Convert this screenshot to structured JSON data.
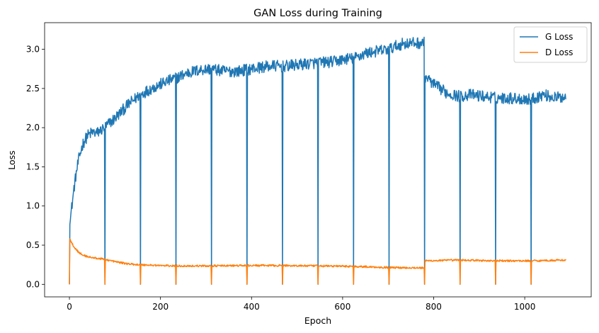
{
  "chart_data": {
    "type": "line",
    "title": "GAN Loss during Training",
    "xlabel": "Epoch",
    "ylabel": "Loss",
    "xlim": [
      -54.5,
      1146
    ],
    "ylim": [
      -0.16,
      3.34
    ],
    "xticks": [
      0,
      200,
      400,
      600,
      800,
      1000
    ],
    "yticks": [
      0.0,
      0.5,
      1.0,
      1.5,
      2.0,
      2.5,
      3.0
    ],
    "ytick_labels": [
      "0.0",
      "0.5",
      "1.0",
      "1.5",
      "2.0",
      "2.5",
      "3.0"
    ],
    "grid": false,
    "legend": "top-right",
    "n_points": 1092,
    "spike_epochs": [
      0,
      78,
      156,
      234,
      312,
      390,
      468,
      546,
      624,
      702,
      780,
      858,
      936,
      1014
    ],
    "series": [
      {
        "name": "G Loss",
        "color": "#1f77b4",
        "points": [
          [
            0,
            0.0
          ],
          [
            1,
            0.78
          ],
          [
            5,
            0.98
          ],
          [
            10,
            1.22
          ],
          [
            15,
            1.42
          ],
          [
            20,
            1.58
          ],
          [
            25,
            1.7
          ],
          [
            30,
            1.8
          ],
          [
            40,
            1.9
          ],
          [
            50,
            1.94
          ],
          [
            60,
            1.93
          ],
          [
            70,
            1.97
          ],
          [
            77,
            2.0
          ],
          [
            100,
            2.12
          ],
          [
            130,
            2.3
          ],
          [
            155,
            2.42
          ],
          [
            180,
            2.5
          ],
          [
            210,
            2.58
          ],
          [
            233,
            2.63
          ],
          [
            260,
            2.7
          ],
          [
            290,
            2.74
          ],
          [
            311,
            2.75
          ],
          [
            340,
            2.72
          ],
          [
            370,
            2.72
          ],
          [
            389,
            2.74
          ],
          [
            420,
            2.77
          ],
          [
            450,
            2.79
          ],
          [
            467,
            2.78
          ],
          [
            500,
            2.8
          ],
          [
            530,
            2.82
          ],
          [
            545,
            2.83
          ],
          [
            580,
            2.84
          ],
          [
            610,
            2.88
          ],
          [
            623,
            2.88
          ],
          [
            650,
            2.95
          ],
          [
            680,
            2.98
          ],
          [
            701,
            3.0
          ],
          [
            730,
            3.07
          ],
          [
            760,
            3.08
          ],
          [
            779,
            3.08
          ],
          [
            781,
            2.66
          ],
          [
            800,
            2.55
          ],
          [
            830,
            2.44
          ],
          [
            857,
            2.4
          ],
          [
            880,
            2.42
          ],
          [
            910,
            2.4
          ],
          [
            935,
            2.38
          ],
          [
            960,
            2.38
          ],
          [
            990,
            2.37
          ],
          [
            1013,
            2.36
          ],
          [
            1040,
            2.42
          ],
          [
            1070,
            2.38
          ],
          [
            1091,
            2.4
          ]
        ]
      },
      {
        "name": "D Loss",
        "color": "#ff7f0e",
        "points": [
          [
            0,
            0.0
          ],
          [
            1,
            0.58
          ],
          [
            10,
            0.48
          ],
          [
            20,
            0.41
          ],
          [
            30,
            0.37
          ],
          [
            50,
            0.34
          ],
          [
            77,
            0.32
          ],
          [
            100,
            0.29
          ],
          [
            130,
            0.26
          ],
          [
            155,
            0.25
          ],
          [
            200,
            0.24
          ],
          [
            233,
            0.235
          ],
          [
            300,
            0.235
          ],
          [
            389,
            0.24
          ],
          [
            467,
            0.24
          ],
          [
            545,
            0.235
          ],
          [
            623,
            0.23
          ],
          [
            701,
            0.215
          ],
          [
            779,
            0.21
          ],
          [
            781,
            0.3
          ],
          [
            857,
            0.31
          ],
          [
            935,
            0.3
          ],
          [
            1013,
            0.3
          ],
          [
            1091,
            0.31
          ]
        ]
      }
    ]
  }
}
